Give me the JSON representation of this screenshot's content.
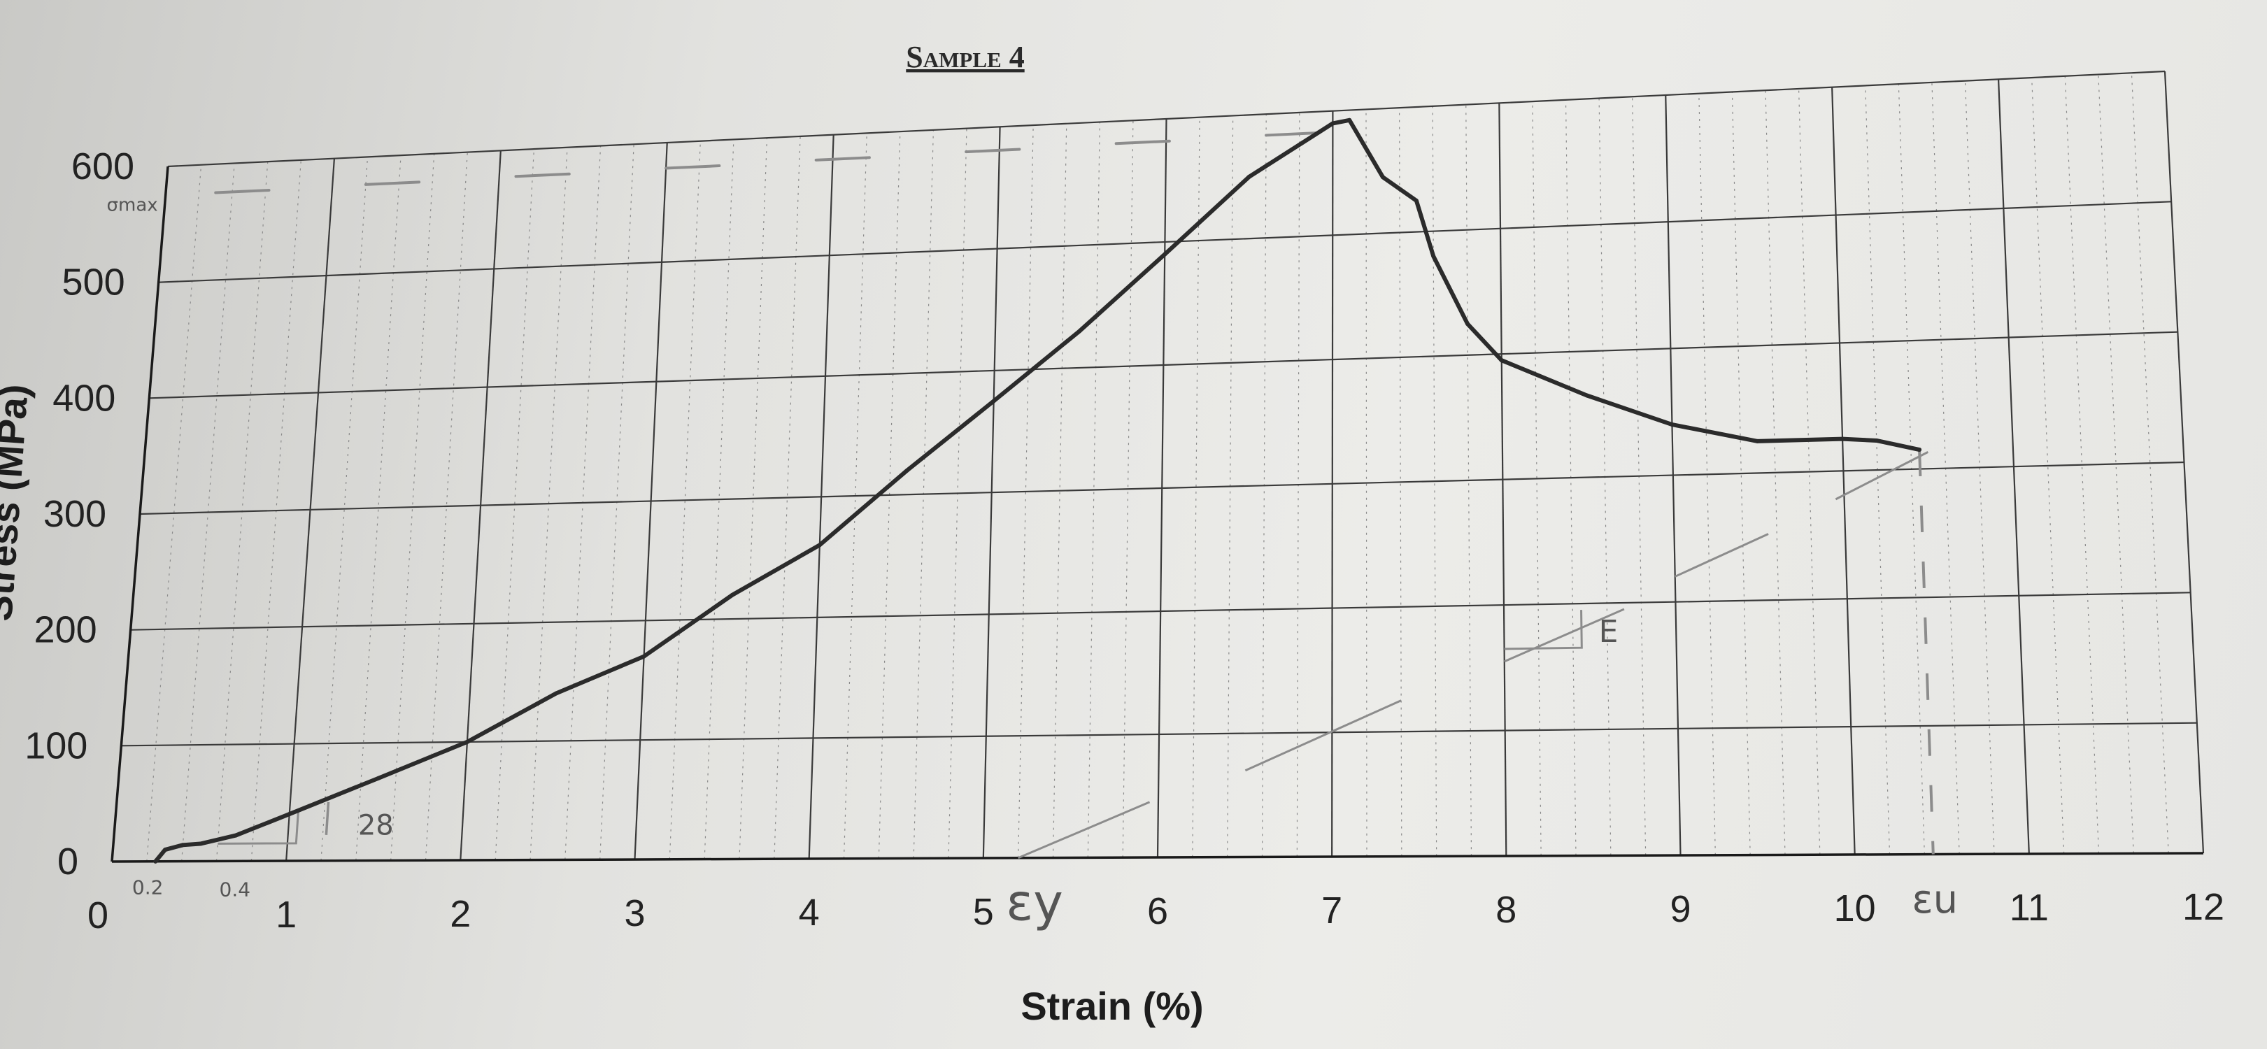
{
  "chart_data": {
    "type": "line",
    "title": "Sample 4",
    "xlabel": "Strain (%)",
    "ylabel": "Stress (MPa)",
    "xlim": [
      0,
      12
    ],
    "ylim": [
      0,
      600
    ],
    "x_ticks": [
      "0",
      "1",
      "2",
      "3",
      "4",
      "5",
      "6",
      "7",
      "8",
      "9",
      "10",
      "11",
      "12"
    ],
    "y_ticks": [
      "0",
      "100",
      "200",
      "300",
      "400",
      "500",
      "600"
    ],
    "grid": true,
    "series": [
      {
        "x": [
          0.25,
          0.3,
          0.4,
          0.5,
          0.7,
          1.0,
          1.5,
          2.0,
          2.5,
          3.0,
          3.5,
          4.0,
          4.5,
          5.0,
          5.5,
          6.0,
          6.5,
          7.0,
          7.1,
          7.3,
          7.5,
          7.6,
          7.8,
          8.0,
          8.5,
          9.0,
          9.5,
          10.0,
          10.2,
          10.45
        ],
        "y": [
          0,
          10,
          14,
          15,
          22,
          40,
          70,
          100,
          140,
          170,
          220,
          260,
          320,
          375,
          430,
          490,
          550,
          590,
          592,
          545,
          525,
          480,
          425,
          395,
          365,
          340,
          325,
          325,
          323,
          315
        ]
      }
    ],
    "annotations": {
      "sigma_max_label": "σmax",
      "offset_label_1": "0.2",
      "offset_label_2": "0.4",
      "slope_label": "28",
      "modulus_label": "E",
      "yield_strain_label": "εy",
      "ultimate_strain_label": "εu"
    },
    "colors": {
      "curve": "#2b2b2b",
      "grid": "#3a3a3a",
      "pencil": "#8c8c8c"
    }
  }
}
